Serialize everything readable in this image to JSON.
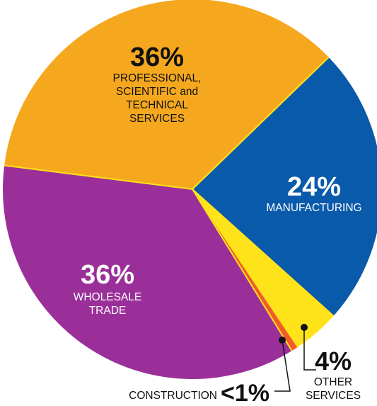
{
  "chart_data": {
    "type": "pie",
    "title": "",
    "slices": [
      {
        "key": "manufacturing",
        "pct_label": "24%",
        "name_lines": [
          "MANUFACTURING"
        ],
        "value": 24,
        "color": "#0a5aab"
      },
      {
        "key": "other",
        "pct_label": "4%",
        "name_lines": [
          "OTHER",
          "SERVICES"
        ],
        "value": 4,
        "color": "#ffe31a"
      },
      {
        "key": "construction",
        "pct_label": "<1%",
        "name_lines": [
          "CONSTRUCTION"
        ],
        "value": 0.6,
        "color": "#f25c29"
      },
      {
        "key": "wholesale",
        "pct_label": "36%",
        "name_lines": [
          "WHOLESALE",
          "TRADE"
        ],
        "value": 36,
        "color": "#9b2f99"
      },
      {
        "key": "professional",
        "pct_label": "36%",
        "name_lines": [
          "PROFESSIONAL,",
          "SCIENTIFIC and",
          "TECHNICAL",
          "SERVICES"
        ],
        "value": 36,
        "color": "#f5a81e"
      }
    ],
    "legend": "none"
  }
}
